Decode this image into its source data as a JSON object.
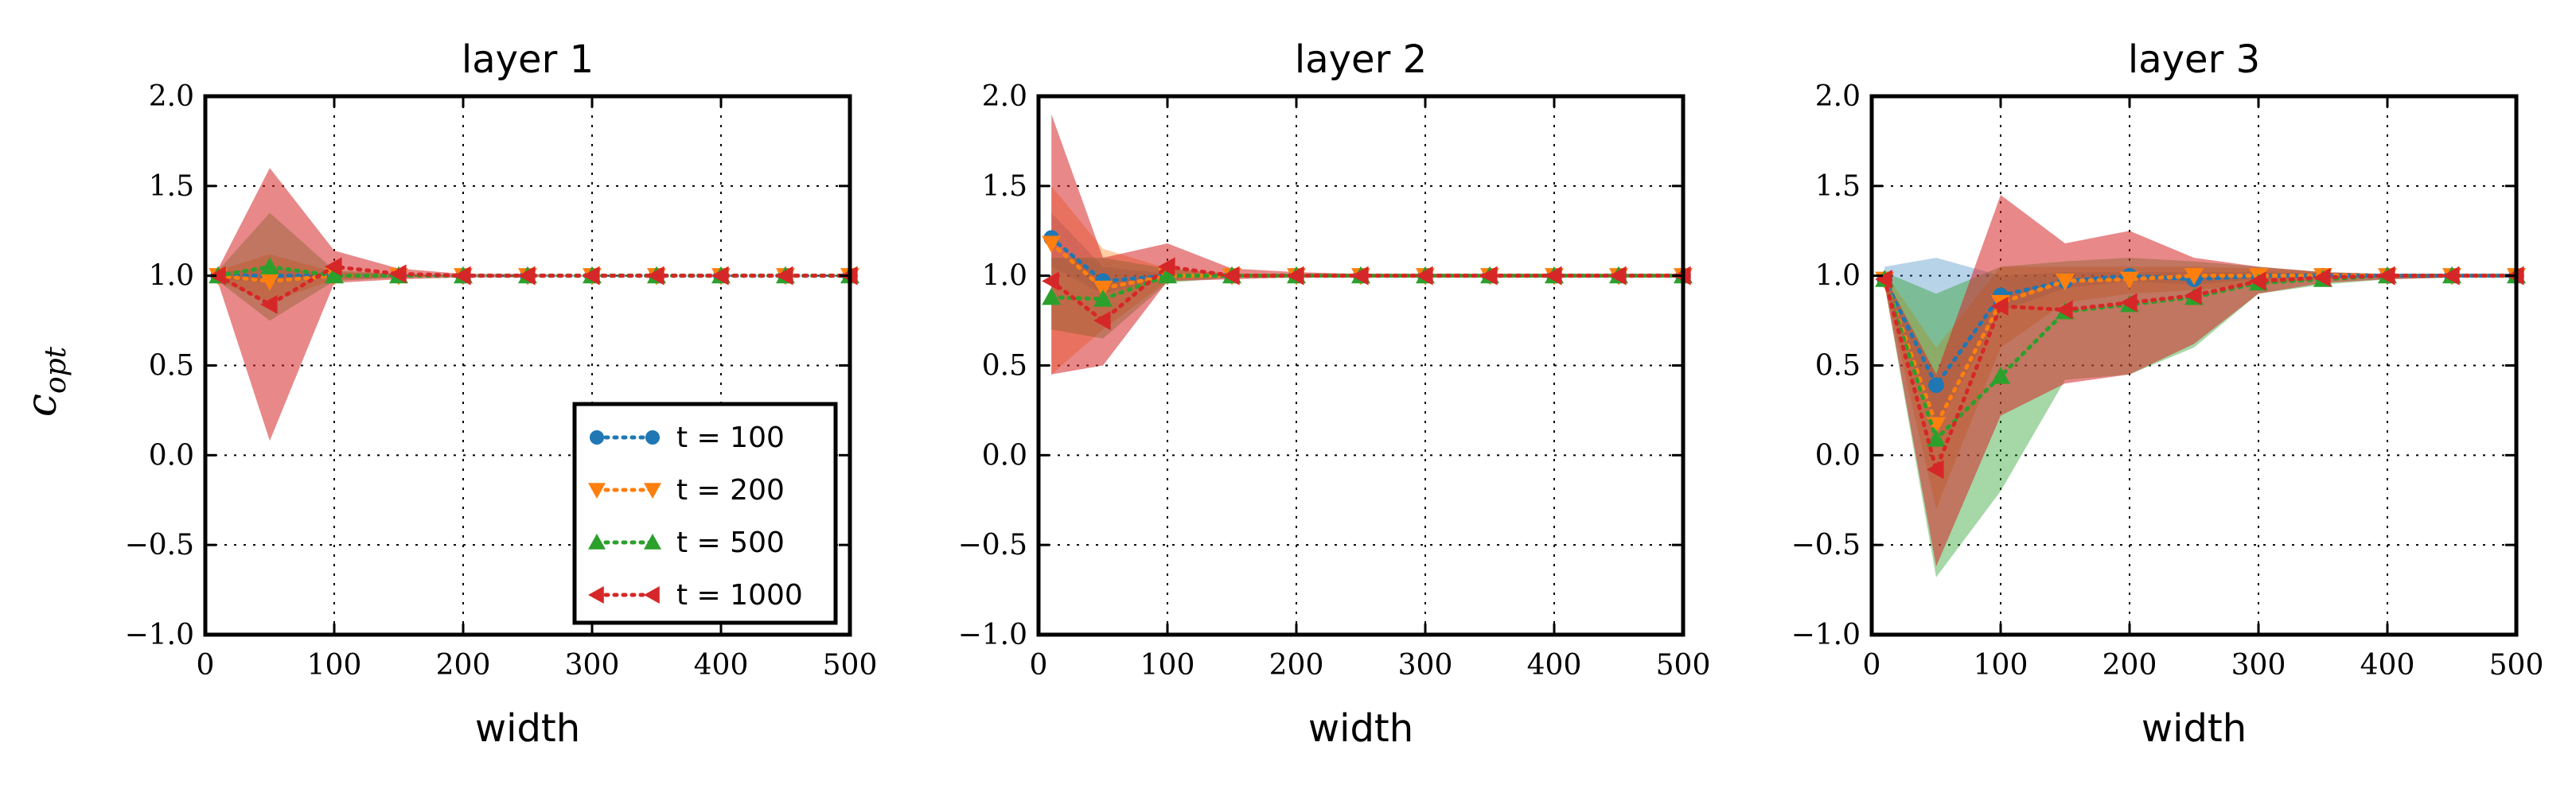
{
  "ylabel": {
    "main": "c",
    "sub": "opt"
  },
  "chart_data": [
    {
      "type": "line",
      "title": "layer 1",
      "xlabel": "width",
      "ylabel": "c_opt",
      "xlim": [
        0,
        500
      ],
      "ylim": [
        -1.0,
        2.0
      ],
      "xticks": [
        "0",
        "100",
        "200",
        "300",
        "400",
        "500"
      ],
      "yticks": [
        "−1.0",
        "−0.5",
        "0.0",
        "0.5",
        "1.0",
        "1.5",
        "2.0"
      ],
      "grid": true,
      "legend_position": "lower-right",
      "legend": [
        "t = 100",
        "t = 200",
        "t = 500",
        "t = 1000"
      ],
      "x": [
        10,
        50,
        100,
        150,
        200,
        250,
        300,
        350,
        400,
        450,
        500
      ],
      "series": [
        {
          "name": "t = 100",
          "color": "#1f77b4",
          "marker": "circle",
          "values": [
            1.0,
            1.0,
            1.0,
            1.0,
            1.0,
            1.0,
            1.0,
            1.0,
            1.0,
            1.0,
            1.0
          ],
          "band_low": [
            0.98,
            0.96,
            0.99,
            0.99,
            1.0,
            1.0,
            1.0,
            1.0,
            1.0,
            1.0,
            1.0
          ],
          "band_high": [
            1.02,
            1.04,
            1.01,
            1.01,
            1.0,
            1.0,
            1.0,
            1.0,
            1.0,
            1.0,
            1.0
          ]
        },
        {
          "name": "t = 200",
          "color": "#ff7f0e",
          "marker": "triangle-down",
          "values": [
            1.0,
            0.97,
            1.0,
            1.0,
            1.0,
            1.0,
            1.0,
            1.0,
            1.0,
            1.0,
            1.0
          ],
          "band_low": [
            0.97,
            0.85,
            0.98,
            0.99,
            1.0,
            1.0,
            1.0,
            1.0,
            1.0,
            1.0,
            1.0
          ],
          "band_high": [
            1.03,
            1.12,
            1.02,
            1.01,
            1.0,
            1.0,
            1.0,
            1.0,
            1.0,
            1.0,
            1.0
          ]
        },
        {
          "name": "t = 500",
          "color": "#2ca02c",
          "marker": "triangle-up",
          "values": [
            1.0,
            1.05,
            1.0,
            1.0,
            1.0,
            1.0,
            1.0,
            1.0,
            1.0,
            1.0,
            1.0
          ],
          "band_low": [
            0.97,
            0.75,
            0.97,
            0.99,
            1.0,
            1.0,
            1.0,
            1.0,
            1.0,
            1.0,
            1.0
          ],
          "band_high": [
            1.03,
            1.35,
            1.03,
            1.01,
            1.0,
            1.0,
            1.0,
            1.0,
            1.0,
            1.0,
            1.0
          ]
        },
        {
          "name": "t = 1000",
          "color": "#d62728",
          "marker": "triangle-left",
          "values": [
            1.0,
            0.84,
            1.05,
            1.01,
            1.0,
            1.0,
            1.0,
            1.0,
            1.0,
            1.0,
            1.0
          ],
          "band_low": [
            0.96,
            0.08,
            0.96,
            0.98,
            0.99,
            0.99,
            1.0,
            1.0,
            1.0,
            1.0,
            1.0
          ],
          "band_high": [
            1.04,
            1.6,
            1.14,
            1.04,
            1.01,
            1.01,
            1.0,
            1.0,
            1.0,
            1.0,
            1.0
          ]
        }
      ]
    },
    {
      "type": "line",
      "title": "layer 2",
      "xlabel": "width",
      "ylabel": "c_opt",
      "xlim": [
        0,
        500
      ],
      "ylim": [
        -1.0,
        2.0
      ],
      "xticks": [
        "0",
        "100",
        "200",
        "300",
        "400",
        "500"
      ],
      "yticks": [
        "−1.0",
        "−0.5",
        "0.0",
        "0.5",
        "1.0",
        "1.5",
        "2.0"
      ],
      "grid": true,
      "x": [
        10,
        50,
        100,
        150,
        200,
        250,
        300,
        350,
        400,
        450,
        500
      ],
      "series": [
        {
          "name": "t = 100",
          "color": "#1f77b4",
          "marker": "circle",
          "values": [
            1.21,
            0.97,
            1.0,
            1.0,
            1.0,
            1.0,
            1.0,
            1.0,
            1.0,
            1.0,
            1.0
          ],
          "band_low": [
            1.05,
            0.9,
            0.99,
            1.0,
            1.0,
            1.0,
            1.0,
            1.0,
            1.0,
            1.0,
            1.0
          ],
          "band_high": [
            1.35,
            1.05,
            1.01,
            1.0,
            1.0,
            1.0,
            1.0,
            1.0,
            1.0,
            1.0,
            1.0
          ]
        },
        {
          "name": "t = 200",
          "color": "#ff7f0e",
          "marker": "triangle-down",
          "values": [
            1.18,
            0.93,
            1.0,
            1.0,
            1.0,
            1.0,
            1.0,
            1.0,
            1.0,
            1.0,
            1.0
          ],
          "band_low": [
            0.45,
            0.7,
            0.97,
            0.99,
            1.0,
            1.0,
            1.0,
            1.0,
            1.0,
            1.0,
            1.0
          ],
          "band_high": [
            1.5,
            1.15,
            1.04,
            1.01,
            1.0,
            1.0,
            1.0,
            1.0,
            1.0,
            1.0,
            1.0
          ]
        },
        {
          "name": "t = 500",
          "color": "#2ca02c",
          "marker": "triangle-up",
          "values": [
            0.88,
            0.87,
            1.0,
            1.0,
            1.0,
            1.0,
            1.0,
            1.0,
            1.0,
            1.0,
            1.0
          ],
          "band_low": [
            0.7,
            0.65,
            0.96,
            0.99,
            1.0,
            1.0,
            1.0,
            1.0,
            1.0,
            1.0,
            1.0
          ],
          "band_high": [
            1.1,
            1.1,
            1.04,
            1.01,
            1.0,
            1.0,
            1.0,
            1.0,
            1.0,
            1.0,
            1.0
          ]
        },
        {
          "name": "t = 1000",
          "color": "#d62728",
          "marker": "triangle-left",
          "values": [
            0.97,
            0.75,
            1.05,
            1.0,
            1.0,
            1.0,
            1.0,
            1.0,
            1.0,
            1.0,
            1.0
          ],
          "band_low": [
            0.45,
            0.5,
            0.97,
            0.98,
            0.99,
            1.0,
            1.0,
            1.0,
            1.0,
            1.0,
            1.0
          ],
          "band_high": [
            1.9,
            1.1,
            1.18,
            1.04,
            1.02,
            1.01,
            1.0,
            1.0,
            1.0,
            1.0,
            1.0
          ]
        }
      ]
    },
    {
      "type": "line",
      "title": "layer 3",
      "xlabel": "width",
      "ylabel": "c_opt",
      "xlim": [
        0,
        500
      ],
      "ylim": [
        -1.0,
        2.0
      ],
      "xticks": [
        "0",
        "100",
        "200",
        "300",
        "400",
        "500"
      ],
      "yticks": [
        "−1.0",
        "−0.5",
        "0.0",
        "0.5",
        "1.0",
        "1.5",
        "2.0"
      ],
      "grid": true,
      "x": [
        10,
        50,
        100,
        150,
        200,
        250,
        300,
        350,
        400,
        450,
        500
      ],
      "series": [
        {
          "name": "t = 100",
          "color": "#1f77b4",
          "marker": "circle",
          "values": [
            0.98,
            0.39,
            0.89,
            0.97,
            1.0,
            0.98,
            1.0,
            1.0,
            1.0,
            1.0,
            1.0
          ],
          "band_low": [
            0.95,
            0.15,
            0.8,
            0.93,
            0.97,
            0.95,
            0.98,
            0.99,
            1.0,
            1.0,
            1.0
          ],
          "band_high": [
            1.05,
            1.1,
            1.0,
            1.02,
            1.02,
            1.02,
            1.02,
            1.01,
            1.0,
            1.0,
            1.0
          ]
        },
        {
          "name": "t = 200",
          "color": "#ff7f0e",
          "marker": "triangle-down",
          "values": [
            0.98,
            0.17,
            0.85,
            0.97,
            0.98,
            1.0,
            1.0,
            1.0,
            1.0,
            1.0,
            1.0
          ],
          "band_low": [
            0.94,
            -0.3,
            0.6,
            0.85,
            0.9,
            0.92,
            0.95,
            0.98,
            1.0,
            1.0,
            1.0
          ],
          "band_high": [
            1.02,
            0.6,
            1.05,
            1.05,
            1.05,
            1.05,
            1.04,
            1.02,
            1.01,
            1.0,
            1.0
          ]
        },
        {
          "name": "t = 500",
          "color": "#2ca02c",
          "marker": "triangle-up",
          "values": [
            0.98,
            0.09,
            0.44,
            0.8,
            0.84,
            0.88,
            0.96,
            0.98,
            1.0,
            1.0,
            1.0
          ],
          "band_low": [
            0.95,
            -0.68,
            -0.2,
            0.42,
            0.45,
            0.6,
            0.9,
            0.95,
            0.98,
            0.99,
            1.0
          ],
          "band_high": [
            1.02,
            0.9,
            1.05,
            1.08,
            1.1,
            1.08,
            1.05,
            1.02,
            1.01,
            1.0,
            1.0
          ]
        },
        {
          "name": "t = 1000",
          "color": "#d62728",
          "marker": "triangle-left",
          "values": [
            0.98,
            -0.08,
            0.83,
            0.81,
            0.85,
            0.89,
            0.97,
            0.99,
            1.0,
            1.0,
            1.0
          ],
          "band_low": [
            0.95,
            -0.62,
            0.22,
            0.4,
            0.45,
            0.62,
            0.9,
            0.96,
            0.98,
            0.99,
            1.0
          ],
          "band_high": [
            1.0,
            0.45,
            1.45,
            1.18,
            1.25,
            1.1,
            1.05,
            1.02,
            1.01,
            1.0,
            1.0
          ]
        }
      ]
    }
  ]
}
